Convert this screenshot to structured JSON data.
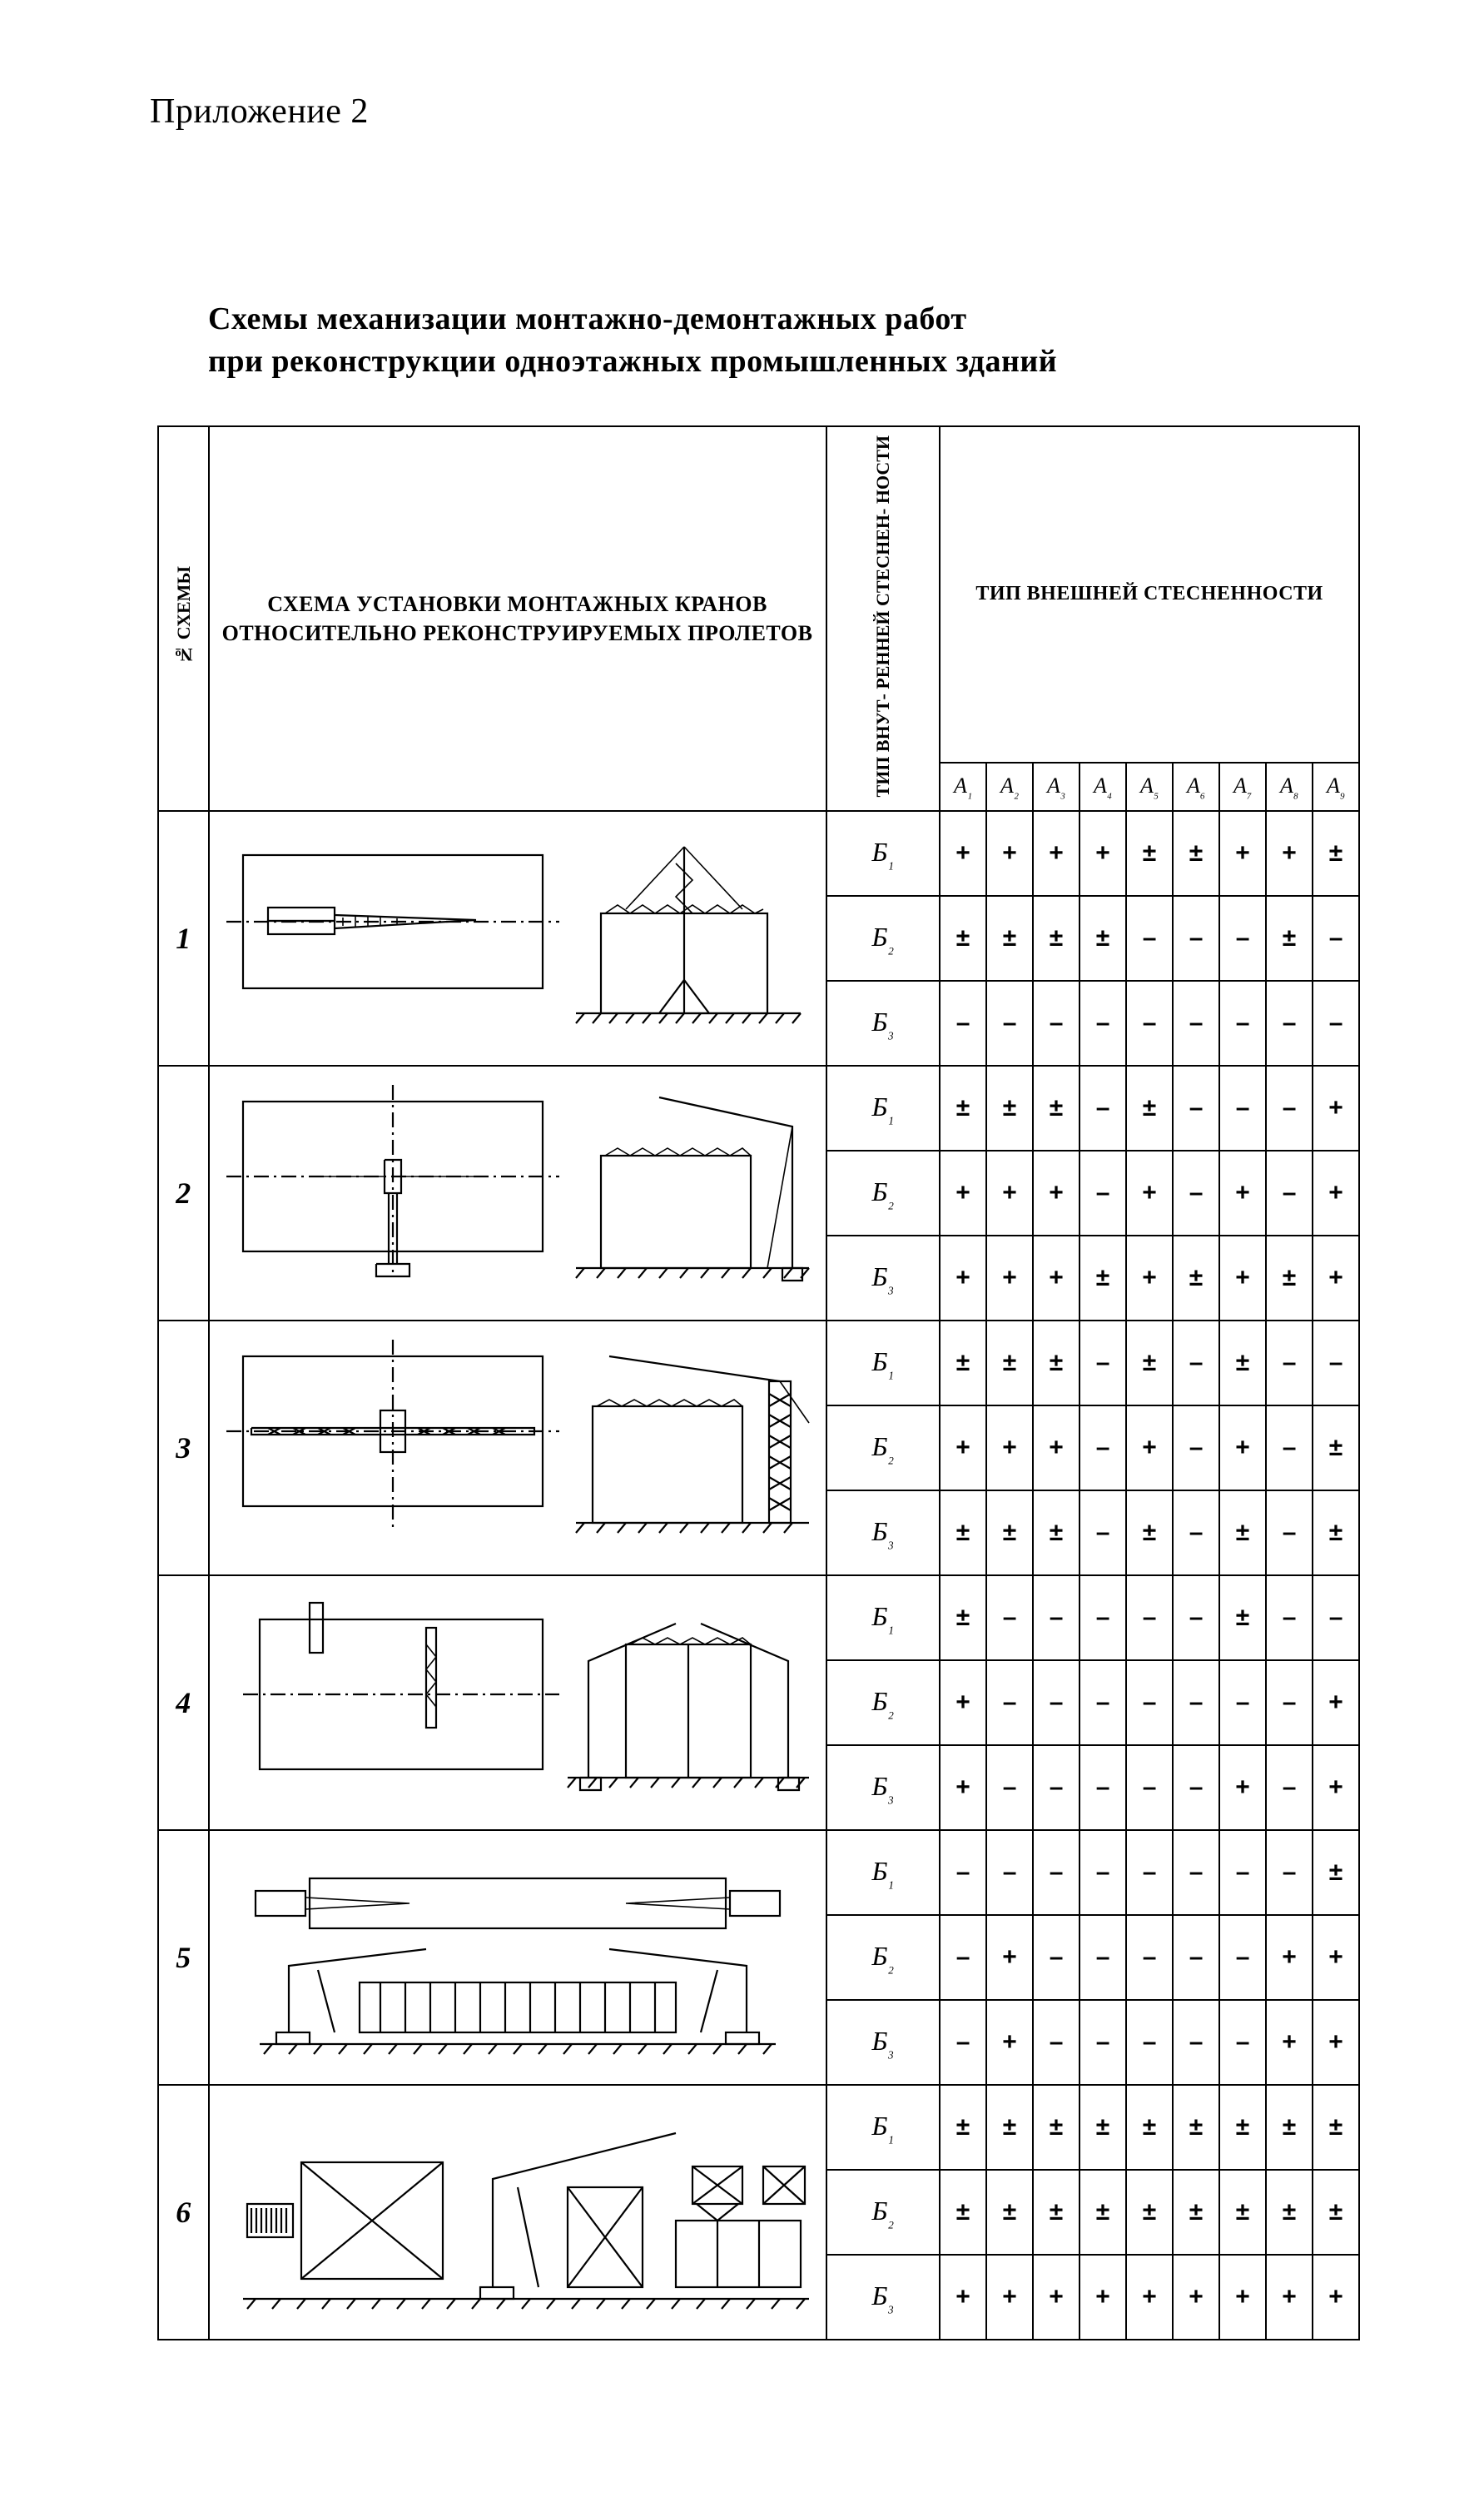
{
  "page": {
    "appendix": "Приложение 2",
    "title_line1": "Схемы  механизации  монтажно-демонтажных  работ",
    "title_line2": "при  реконструкции  одноэтажных  промышленных  зданий"
  },
  "headers": {
    "scheme_no_vertical": "№ СХЕМЫ",
    "diagram": "СХЕМА УСТАНОВКИ МОНТАЖНЫХ КРАНОВ ОТНОСИТЕЛЬНО РЕКОНСТРУИРУЕМЫХ ПРОЛЕТОВ",
    "inner_constraint_vertical": "ТИП ВНУТ-\nРЕННЕЙ\nСТЕСНЕН-\nНОСТИ",
    "outer_constraint": "ТИП ВНЕШНЕЙ СТЕСНЕННОСТИ",
    "A_cols": [
      "А₁",
      "А₂",
      "А₃",
      "А₄",
      "А₅",
      "А₆",
      "А₇",
      "А₈",
      "А₉"
    ]
  },
  "symbols": {
    "plus": "+",
    "minus": "–",
    "pm": "±"
  },
  "font": {
    "header_size_pt": 26,
    "cell_size_pt": 30,
    "title_size_pt": 38
  },
  "colors": {
    "ink": "#000000",
    "paper": "#ffffff"
  },
  "diagram_svgs": [
    "scheme-1",
    "scheme-2",
    "scheme-3",
    "scheme-4",
    "scheme-5",
    "scheme-6"
  ],
  "schemes": [
    {
      "no": "1",
      "rows": [
        {
          "b": "Б₁",
          "cells": [
            "+",
            "+",
            "+",
            "+",
            "±",
            "±",
            "+",
            "+",
            "±"
          ]
        },
        {
          "b": "Б₂",
          "cells": [
            "±",
            "±",
            "±",
            "±",
            "–",
            "–",
            "–",
            "±",
            "–"
          ]
        },
        {
          "b": "Б₃",
          "cells": [
            "–",
            "–",
            "–",
            "–",
            "–",
            "–",
            "–",
            "–",
            "–"
          ]
        }
      ]
    },
    {
      "no": "2",
      "rows": [
        {
          "b": "Б₁",
          "cells": [
            "±",
            "±",
            "±",
            "–",
            "±",
            "–",
            "–",
            "–",
            "+"
          ]
        },
        {
          "b": "Б₂",
          "cells": [
            "+",
            "+",
            "+",
            "–",
            "+",
            "–",
            "+",
            "–",
            "+"
          ]
        },
        {
          "b": "Б₃",
          "cells": [
            "+",
            "+",
            "+",
            "±",
            "+",
            "±",
            "+",
            "±",
            "+"
          ]
        }
      ]
    },
    {
      "no": "3",
      "rows": [
        {
          "b": "Б₁",
          "cells": [
            "±",
            "±",
            "±",
            "–",
            "±",
            "–",
            "±",
            "–",
            "–"
          ]
        },
        {
          "b": "Б₂",
          "cells": [
            "+",
            "+",
            "+",
            "–",
            "+",
            "–",
            "+",
            "–",
            "±"
          ]
        },
        {
          "b": "Б₃",
          "cells": [
            "±",
            "±",
            "±",
            "–",
            "±",
            "–",
            "±",
            "–",
            "±"
          ]
        }
      ]
    },
    {
      "no": "4",
      "rows": [
        {
          "b": "Б₁",
          "cells": [
            "±",
            "–",
            "–",
            "–",
            "–",
            "–",
            "±",
            "–",
            "–"
          ]
        },
        {
          "b": "Б₂",
          "cells": [
            "+",
            "–",
            "–",
            "–",
            "–",
            "–",
            "–",
            "–",
            "+"
          ]
        },
        {
          "b": "Б₃",
          "cells": [
            "+",
            "–",
            "–",
            "–",
            "–",
            "–",
            "+",
            "–",
            "+"
          ]
        }
      ]
    },
    {
      "no": "5",
      "rows": [
        {
          "b": "Б₁",
          "cells": [
            "–",
            "–",
            "–",
            "–",
            "–",
            "–",
            "–",
            "–",
            "±"
          ]
        },
        {
          "b": "Б₂",
          "cells": [
            "–",
            "+",
            "–",
            "–",
            "–",
            "–",
            "–",
            "+",
            "+"
          ]
        },
        {
          "b": "Б₃",
          "cells": [
            "–",
            "+",
            "–",
            "–",
            "–",
            "–",
            "–",
            "+",
            "+"
          ]
        }
      ]
    },
    {
      "no": "6",
      "rows": [
        {
          "b": "Б₁",
          "cells": [
            "±",
            "±",
            "±",
            "±",
            "±",
            "±",
            "±",
            "±",
            "±"
          ]
        },
        {
          "b": "Б₂",
          "cells": [
            "±",
            "±",
            "±",
            "±",
            "±",
            "±",
            "±",
            "±",
            "±"
          ]
        },
        {
          "b": "Б₃",
          "cells": [
            "+",
            "+",
            "+",
            "+",
            "+",
            "+",
            "+",
            "+",
            "+"
          ]
        }
      ]
    }
  ]
}
